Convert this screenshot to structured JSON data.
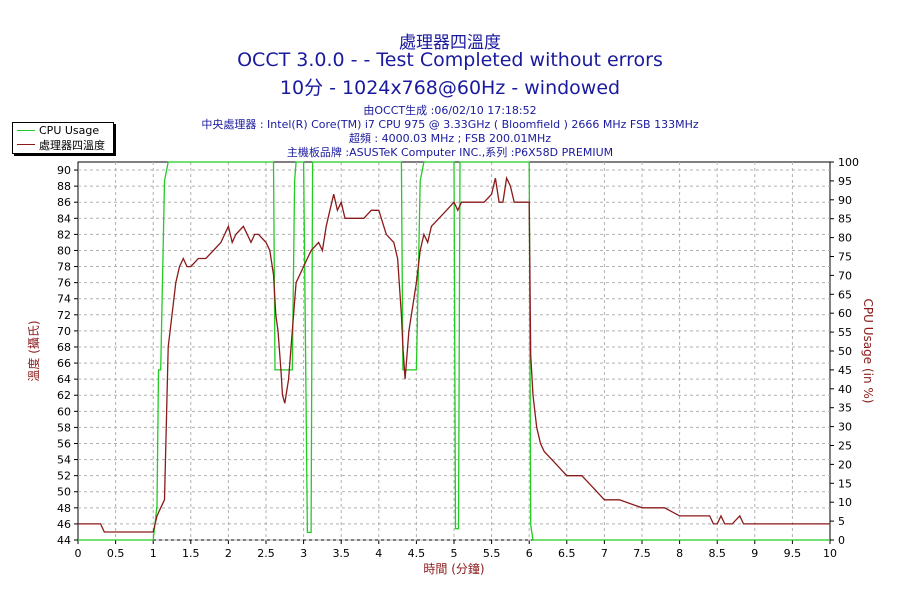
{
  "header": {
    "title_main": "處理器四溫度",
    "title_occt": "OCCT 3.0.0 -  - Test Completed without errors",
    "title_cfg": "10分 - 1024x768@60Hz - windowed",
    "info_generated": "由OCCT生成 :06/02/10 17:18:52",
    "info_cpu": "中央處理器 : Intel(R) Core(TM) i7 CPU 975 @ 3.33GHz ( Bloomfield ) 2666 MHz FSB 133MHz",
    "info_freq": "超頻 : 4000.03 MHz ; FSB 200.01MHz",
    "info_board": "主機板品牌 :ASUSTeK Computer INC.,系列 :P6X58D PREMIUM"
  },
  "chart_data": {
    "type": "line",
    "xlabel": "時間 (分鐘)",
    "ylabel_left": "溫度 (攝氏)",
    "ylabel_right": "CPU Usage (in %)",
    "xlim": [
      0,
      10
    ],
    "ylim_left": [
      44,
      91
    ],
    "ylim_right": [
      0,
      100
    ],
    "x_ticks": [
      "0",
      "0.5",
      "1",
      "1.5",
      "2",
      "2.5",
      "3",
      "3.5",
      "4",
      "4.5",
      "5",
      "5.5",
      "6",
      "6.5",
      "7",
      "7.5",
      "8",
      "8.5",
      "9",
      "9.5",
      "10"
    ],
    "y_ticks_left": [
      "44",
      "46",
      "48",
      "50",
      "52",
      "54",
      "56",
      "58",
      "60",
      "62",
      "64",
      "66",
      "68",
      "70",
      "72",
      "74",
      "76",
      "78",
      "80",
      "82",
      "84",
      "86",
      "88",
      "90"
    ],
    "y_ticks_right": [
      "0",
      "5",
      "10",
      "15",
      "20",
      "25",
      "30",
      "35",
      "40",
      "45",
      "50",
      "55",
      "60",
      "65",
      "70",
      "75",
      "80",
      "85",
      "90",
      "95",
      "100"
    ],
    "grid": true,
    "legend_position": "top-left",
    "colors": {
      "cpu_usage": "#22cc22",
      "temperature": "#8b1a1a",
      "axis_text": "#1a1a9e",
      "grid": "#b0b0b0"
    },
    "series": [
      {
        "name": "CPU Usage",
        "axis": "right",
        "x": [
          0,
          1.0,
          1.05,
          1.07,
          1.1,
          1.15,
          1.2,
          2.6,
          2.62,
          2.65,
          2.72,
          2.75,
          2.8,
          2.85,
          2.88,
          2.9,
          3.0,
          3.05,
          3.1,
          3.12,
          3.2,
          4.3,
          4.32,
          4.35,
          4.42,
          4.45,
          4.5,
          4.55,
          4.6,
          5.0,
          5.02,
          5.04,
          5.06,
          5.08,
          5.1,
          6.0,
          6.02,
          6.05,
          10
        ],
        "y": [
          0,
          0,
          9,
          45,
          45,
          95,
          100,
          100,
          45,
          45,
          45,
          45,
          45,
          45,
          95,
          100,
          100,
          2,
          2,
          100,
          100,
          100,
          45,
          45,
          45,
          45,
          45,
          95,
          100,
          100,
          3,
          3,
          3,
          100,
          100,
          100,
          4,
          0,
          0
        ]
      },
      {
        "name": "處理器四溫度",
        "axis": "left",
        "x": [
          0,
          0.3,
          0.35,
          1.0,
          1.05,
          1.1,
          1.15,
          1.2,
          1.25,
          1.3,
          1.35,
          1.4,
          1.45,
          1.5,
          1.6,
          1.7,
          1.8,
          1.9,
          2.0,
          2.05,
          2.1,
          2.2,
          2.3,
          2.35,
          2.4,
          2.5,
          2.55,
          2.6,
          2.63,
          2.66,
          2.7,
          2.72,
          2.75,
          2.8,
          2.85,
          2.9,
          3.0,
          3.1,
          3.2,
          3.25,
          3.3,
          3.35,
          3.4,
          3.45,
          3.5,
          3.55,
          3.6,
          3.7,
          3.8,
          3.9,
          4.0,
          4.1,
          4.2,
          4.25,
          4.3,
          4.32,
          4.35,
          4.4,
          4.5,
          4.55,
          4.6,
          4.65,
          4.7,
          4.8,
          4.9,
          5.0,
          5.05,
          5.1,
          5.2,
          5.3,
          5.4,
          5.5,
          5.55,
          5.6,
          5.65,
          5.7,
          5.75,
          5.8,
          5.9,
          6.0,
          6.02,
          6.05,
          6.1,
          6.15,
          6.2,
          6.3,
          6.4,
          6.5,
          6.6,
          6.7,
          6.8,
          6.9,
          7.0,
          7.2,
          7.5,
          7.8,
          8.0,
          8.2,
          8.4,
          8.45,
          8.5,
          8.55,
          8.6,
          8.7,
          8.8,
          8.85,
          8.9,
          9.0,
          9.5,
          10.0
        ],
        "y": [
          46,
          46,
          45,
          45,
          47,
          48,
          49,
          68,
          72,
          76,
          78,
          79,
          78,
          78,
          79,
          79,
          80,
          81,
          83,
          81,
          82,
          83,
          81,
          82,
          82,
          81,
          80,
          77,
          72,
          70,
          65,
          62,
          61,
          64,
          70,
          76,
          78,
          80,
          81,
          80,
          83,
          85,
          87,
          85,
          86,
          84,
          84,
          84,
          84,
          85,
          85,
          82,
          81,
          79,
          72,
          68,
          64,
          70,
          76,
          80,
          82,
          81,
          83,
          84,
          85,
          86,
          85,
          86,
          86,
          86,
          86,
          87,
          89,
          86,
          86,
          89,
          88,
          86,
          86,
          86,
          67,
          62,
          58,
          56,
          55,
          54,
          53,
          52,
          52,
          52,
          51,
          50,
          49,
          49,
          48,
          48,
          47,
          47,
          47,
          46,
          46,
          47,
          46,
          46,
          47,
          46,
          46,
          46,
          46,
          46
        ]
      }
    ]
  }
}
